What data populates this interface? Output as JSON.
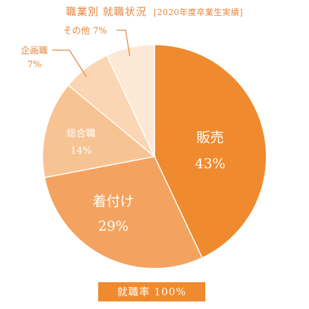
{
  "title": {
    "main": "職業別 就職状況",
    "sub": "[2020年度卒業生実績]"
  },
  "chart_data": {
    "type": "pie",
    "slices": [
      {
        "label": "販売",
        "value": 43,
        "value_label": "43%",
        "color": "#ef8a2f",
        "label_color": "#ffffff"
      },
      {
        "label": "着付け",
        "value": 29,
        "value_label": "29%",
        "color": "#f3a35f",
        "label_color": "#ffffff"
      },
      {
        "label": "総合職",
        "value": 14,
        "value_label": "14%",
        "color": "#f8c393",
        "label_color": "#ffffff"
      },
      {
        "label": "企画職",
        "value": 7,
        "value_label": "7%",
        "color": "#fbd6b4",
        "label_color": "#e8853a"
      },
      {
        "label": "その他",
        "value": 7,
        "value_label": "7%",
        "color": "#fde8d6",
        "label_color": "#e8853a"
      }
    ],
    "start_angle_deg": 0,
    "direction": "clockwise"
  },
  "footer": {
    "rate_label": "就職率 100%"
  },
  "colors": {
    "accent": "#e8853a",
    "badge_bg": "#f08a2e"
  }
}
